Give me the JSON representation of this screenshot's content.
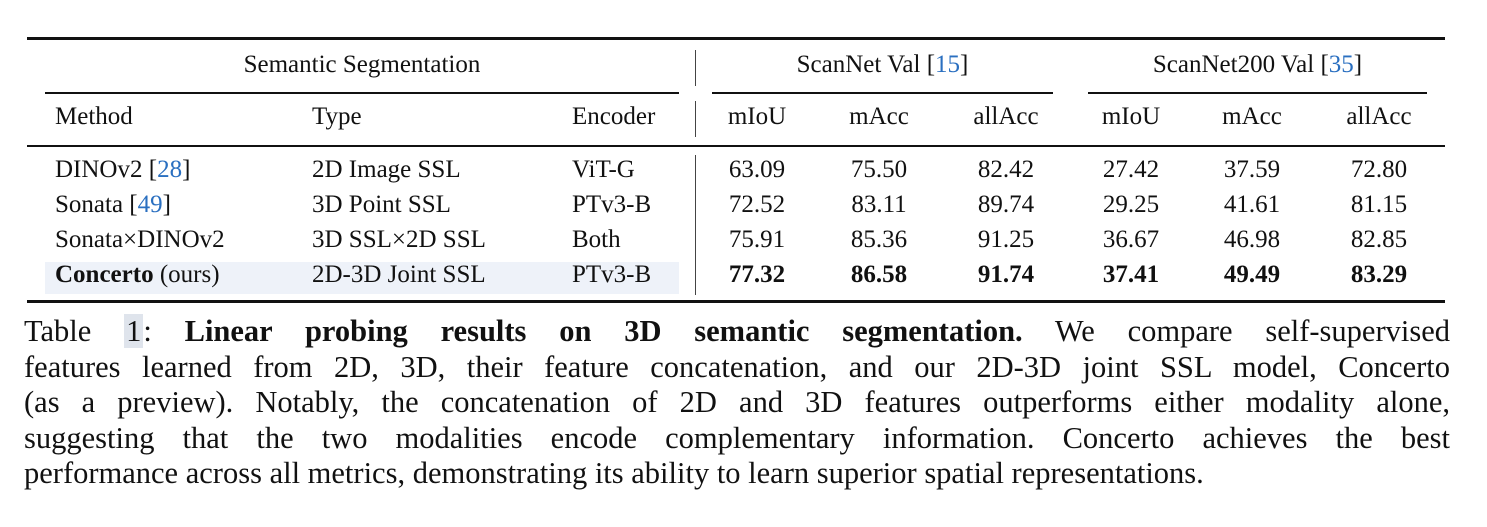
{
  "table": {
    "header_group": {
      "left": "Semantic Segmentation",
      "scannet": {
        "label": "ScanNet Val [",
        "ref": "15",
        "close": "]"
      },
      "scannet200": {
        "label": "ScanNet200 Val [",
        "ref": "35",
        "close": "]"
      }
    },
    "columns": {
      "method": "Method",
      "type": "Type",
      "encoder": "Encoder",
      "metrics": [
        "mIoU",
        "mAcc",
        "allAcc",
        "mIoU",
        "mAcc",
        "allAcc"
      ]
    },
    "rows": [
      {
        "method": "DINOv2 [",
        "ref": "28",
        "close": "]",
        "type": "2D Image SSL",
        "encoder": "ViT-G",
        "values": [
          "63.09",
          "75.50",
          "82.42",
          "27.42",
          "37.59",
          "72.80"
        ]
      },
      {
        "method": "Sonata [",
        "ref": "49",
        "close": "]",
        "type": "3D Point SSL",
        "encoder": "PTv3-B",
        "values": [
          "72.52",
          "83.11",
          "89.74",
          "29.25",
          "41.61",
          "81.15"
        ]
      },
      {
        "method": "Sonata×DINOv2",
        "type": "3D SSL×2D SSL",
        "encoder": "Both",
        "values": [
          "75.91",
          "85.36",
          "91.25",
          "36.67",
          "46.98",
          "82.85"
        ]
      },
      {
        "method_bold": "Concerto",
        "method_suffix": " (ours)",
        "type": "2D-3D Joint SSL",
        "encoder": "PTv3-B",
        "values": [
          "77.32",
          "86.58",
          "91.74",
          "37.41",
          "49.49",
          "83.29"
        ]
      }
    ]
  },
  "caption": {
    "prefix": "Table ",
    "number": "1",
    "colon": ": ",
    "title": "Linear probing results on 3D semantic segmentation.",
    "line1_rest": " We compare self-supervised",
    "line2": "features learned from 2D, 3D, their feature concatenation, and our 2D-3D joint SSL model, Concerto",
    "line3": "(as a preview). Notably, the concatenation of 2D and 3D features outperforms either modality alone,",
    "line4": "suggesting that the two modalities encode complementary information. Concerto achieves the best",
    "line5": "performance across all metrics, demonstrating its ability to learn superior spatial representations."
  }
}
